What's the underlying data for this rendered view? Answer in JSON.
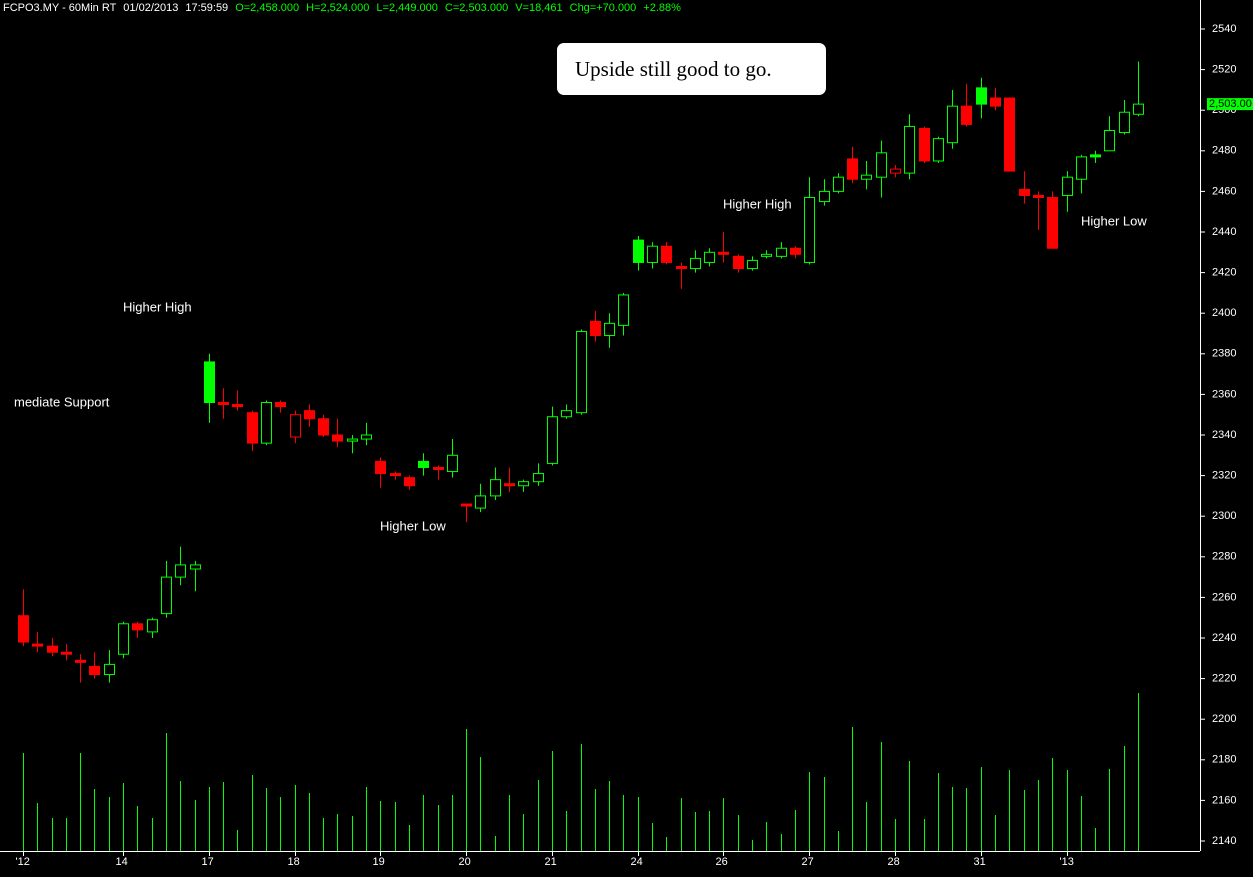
{
  "chart_data": {
    "type": "candlestick",
    "header": [
      "FCPO3.MY - 60Min RT",
      "01/02/2013",
      "17:59:59",
      "O=2,458.000",
      "H=2,524.000",
      "L=2,449.000",
      "C=2,503.000",
      "V=18,461",
      "Chg=+70.000",
      "+2.88%"
    ],
    "note": "Upside still good to go.",
    "annotations": [
      "Higher High",
      "mediate Support",
      "Higher Low",
      "Higher High",
      "Higher Low"
    ],
    "last_label": "2,503.00",
    "up_color": "#00ff00",
    "down_color": "#ff0000",
    "categories": [
      "'12",
      null,
      null,
      null,
      null,
      null,
      null,
      "14",
      null,
      null,
      null,
      null,
      null,
      "17",
      null,
      null,
      null,
      null,
      null,
      "18",
      null,
      null,
      null,
      null,
      null,
      "19",
      null,
      null,
      null,
      null,
      null,
      "20",
      null,
      null,
      null,
      null,
      null,
      "21",
      null,
      null,
      null,
      null,
      null,
      "24",
      null,
      null,
      null,
      null,
      null,
      "26",
      null,
      null,
      null,
      null,
      null,
      "27",
      null,
      null,
      null,
      null,
      null,
      "28",
      null,
      null,
      null,
      null,
      null,
      "31",
      null,
      null,
      null,
      null,
      null,
      "'13",
      null,
      null,
      null,
      null,
      null
    ],
    "open": [
      2251,
      2237,
      2236,
      2233,
      2229,
      2226,
      2222,
      2232,
      2247,
      2243,
      2252,
      2270,
      2274,
      2376,
      2356,
      2355,
      2351,
      2336,
      2356,
      2339,
      2352,
      2348,
      2340,
      2337,
      2338,
      2327,
      2321,
      2319,
      2327,
      2324,
      2322,
      2306,
      2304,
      2310,
      2316,
      2315,
      2317,
      2326,
      2349,
      2351,
      2396,
      2389,
      2394,
      2436,
      2425,
      2433,
      2423,
      2422,
      2425,
      2430,
      2428,
      2422,
      2428,
      2428,
      2432,
      2425,
      2455,
      2460,
      2476,
      2466,
      2467,
      2469,
      2469,
      2491,
      2475,
      2484,
      2502,
      2511,
      2506,
      2506,
      2461,
      2458,
      2457,
      2458,
      2466,
      2478,
      2480,
      2489,
      2498
    ],
    "high": [
      2264,
      2243,
      2240,
      2237,
      2232,
      2233,
      2234,
      2248,
      2248,
      2250,
      2278,
      2285,
      2278,
      2380,
      2363,
      2362,
      2352,
      2357,
      2357,
      2352,
      2355,
      2350,
      2348,
      2340,
      2346,
      2329,
      2322,
      2320,
      2331,
      2325,
      2338,
      2306,
      2316,
      2324,
      2324,
      2318,
      2326,
      2354,
      2355,
      2392,
      2401,
      2400,
      2410,
      2438,
      2435,
      2435,
      2425,
      2431,
      2432,
      2440,
      2429,
      2428,
      2431,
      2435,
      2433,
      2467,
      2466,
      2469,
      2482,
      2475,
      2485,
      2473,
      2498,
      2492,
      2487,
      2510,
      2513,
      2516,
      2511,
      2506,
      2470,
      2460,
      2460,
      2470,
      2478,
      2480,
      2497,
      2505,
      2524
    ],
    "low": [
      2236,
      2233,
      2231,
      2229,
      2218,
      2220,
      2218,
      2230,
      2240,
      2240,
      2250,
      2266,
      2263,
      2346,
      2348,
      2352,
      2332,
      2335,
      2351,
      2336,
      2344,
      2339,
      2334,
      2331,
      2335,
      2314,
      2318,
      2313,
      2320,
      2318,
      2319,
      2297,
      2302,
      2308,
      2312,
      2312,
      2315,
      2325,
      2348,
      2350,
      2386,
      2383,
      2389,
      2421,
      2422,
      2424,
      2412,
      2420,
      2423,
      2425,
      2420,
      2421,
      2427,
      2427,
      2427,
      2424,
      2453,
      2459,
      2464,
      2461,
      2457,
      2467,
      2466,
      2474,
      2474,
      2481,
      2492,
      2496,
      2500,
      2470,
      2454,
      2441,
      2432,
      2450,
      2459,
      2474,
      2480,
      2488,
      2497
    ],
    "close": [
      2238,
      2236,
      2233,
      2232,
      2228,
      2222,
      2227,
      2247,
      2244,
      2249,
      2270,
      2276,
      2276,
      2356,
      2355,
      2354,
      2336,
      2356,
      2354,
      2350,
      2348,
      2340,
      2337,
      2338,
      2340,
      2321,
      2320,
      2315,
      2324,
      2323,
      2330,
      2305,
      2310,
      2318,
      2315,
      2317,
      2321,
      2349,
      2352,
      2391,
      2389,
      2395,
      2409,
      2425,
      2433,
      2425,
      2422,
      2427,
      2430,
      2429,
      2422,
      2426,
      2429,
      2432,
      2429,
      2457,
      2460,
      2467,
      2466,
      2468,
      2479,
      2471,
      2492,
      2475,
      2486,
      2502,
      2493,
      2503,
      2502,
      2470,
      2458,
      2457,
      2432,
      2467,
      2477,
      2477,
      2490,
      2499,
      2503
    ],
    "volume": [
      98,
      48,
      33,
      33,
      98,
      62,
      54,
      68,
      45,
      33,
      118,
      70,
      51,
      64,
      69,
      21,
      76,
      63,
      54,
      66,
      58,
      33,
      37,
      35,
      64,
      50,
      49,
      26,
      56,
      46,
      56,
      122,
      94,
      15,
      56,
      37,
      71,
      100,
      40,
      107,
      62,
      70,
      56,
      54,
      28,
      14,
      53,
      39,
      40,
      53,
      36,
      11,
      29,
      17,
      41,
      79,
      74,
      20,
      124,
      49,
      109,
      32,
      90,
      32,
      78,
      64,
      63,
      84,
      36,
      81,
      61,
      71,
      93,
      81,
      55,
      23,
      82,
      105,
      158
    ],
    "ylim": [
      2140,
      2540
    ],
    "yticks": [
      2140,
      2160,
      2180,
      2200,
      2220,
      2240,
      2260,
      2280,
      2300,
      2320,
      2340,
      2360,
      2380,
      2400,
      2420,
      2440,
      2460,
      2480,
      2500,
      2520,
      2540
    ]
  }
}
